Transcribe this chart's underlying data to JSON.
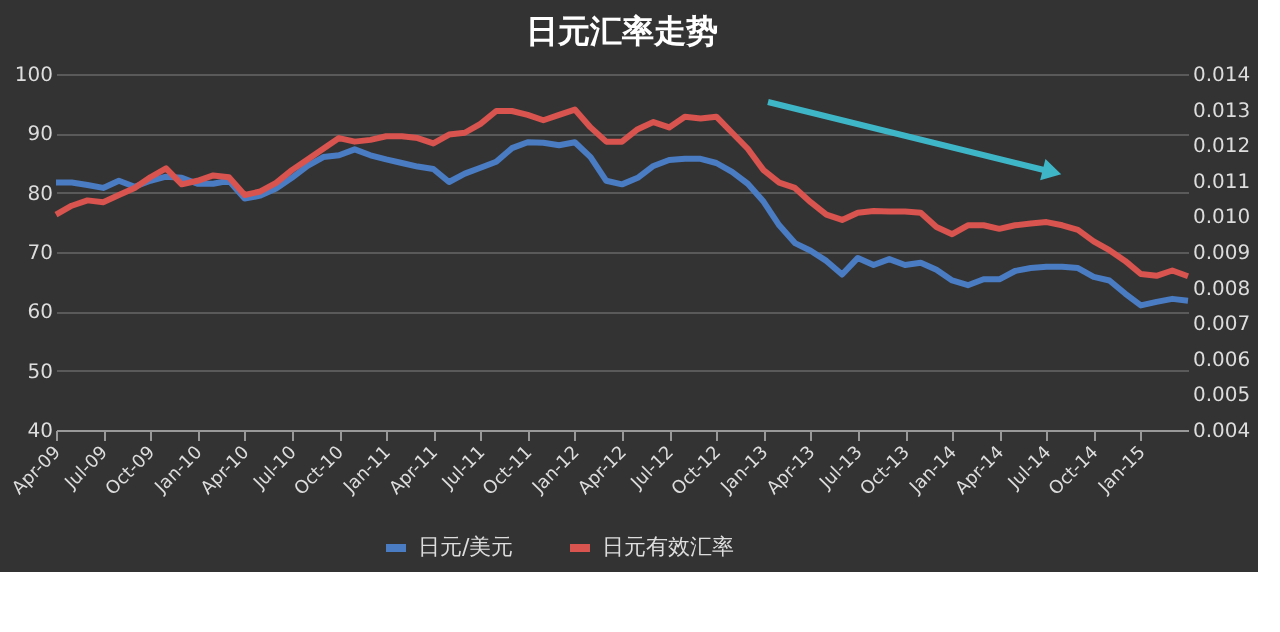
{
  "chart_data": {
    "type": "line",
    "title": "日元汇率走势",
    "categories": [
      "Apr-09",
      null,
      null,
      "Jul-09",
      null,
      null,
      "Oct-09",
      null,
      null,
      "Jan-10",
      null,
      null,
      "Apr-10",
      null,
      null,
      "Jul-10",
      null,
      null,
      "Oct-10",
      null,
      null,
      "Jan-11",
      null,
      null,
      "Apr-11",
      null,
      null,
      "Jul-11",
      null,
      null,
      "Oct-11",
      null,
      null,
      "Jan-12",
      null,
      null,
      "Apr-12",
      null,
      null,
      "Jul-12",
      null,
      null,
      "Oct-12",
      null,
      null,
      "Jan-13",
      null,
      null,
      "Apr-13",
      null,
      null,
      "Jul-13",
      null,
      null,
      "Oct-13",
      null,
      null,
      "Jan-14",
      null,
      null,
      "Apr-14",
      null,
      null,
      "Jul-14",
      null,
      null,
      "Oct-14",
      null,
      null,
      "Jan-15",
      null,
      null,
      null
    ],
    "series": [
      {
        "name": "日元/美元",
        "color": "#4a7cc4",
        "values": [
          81.7,
          81.7,
          81.3,
          80.8,
          82,
          81,
          82,
          82.7,
          82.5,
          81.5,
          81.5,
          82,
          79,
          79.5,
          80.7,
          82.5,
          84.5,
          86,
          86.3,
          87.3,
          86.3,
          85.6,
          85,
          84.4,
          84,
          81.8,
          83.2,
          84.2,
          85.2,
          87.5,
          88.5,
          88.4,
          88,
          88.5,
          86,
          82,
          81.4,
          82.5,
          84.5,
          85.5,
          85.7,
          85.7,
          85,
          83.5,
          81.5,
          78.5,
          74.5,
          71.5,
          70.2,
          68.5,
          66.2,
          69,
          67.8,
          68.8,
          67.8,
          68.2,
          67,
          65.2,
          64.4,
          65.4,
          65.4,
          66.8,
          67.3,
          67.5,
          67.5,
          67.3,
          65.8,
          65.2,
          63,
          61,
          61.6,
          62.1,
          61.8
        ]
      },
      {
        "name": "日元有效汇率",
        "color": "#d9534f",
        "axis": "y2",
        "values": [
          0.01005,
          0.0103,
          0.01045,
          0.0104,
          0.0106,
          0.0108,
          0.0111,
          0.01135,
          0.0109,
          0.011,
          0.01115,
          0.0111,
          0.0106,
          0.0107,
          0.01094,
          0.0113,
          0.0116,
          0.0119,
          0.0122,
          0.0121,
          0.01215,
          0.01225,
          0.01225,
          0.0122,
          0.01205,
          0.0123,
          0.01235,
          0.0126,
          0.01296,
          0.01296,
          0.01285,
          0.0127,
          0.01285,
          0.013,
          0.0125,
          0.0121,
          0.0121,
          0.01245,
          0.01265,
          0.0125,
          0.0128,
          0.01275,
          0.0128,
          0.01235,
          0.0119,
          0.0113,
          0.01095,
          0.0108,
          0.0104,
          0.01005,
          0.0099,
          0.0101,
          0.01015,
          0.01014,
          0.01014,
          0.0101,
          0.0097,
          0.0095,
          0.00975,
          0.00975,
          0.00965,
          0.00975,
          0.0098,
          0.00984,
          0.00975,
          0.00962,
          0.0093,
          0.00905,
          0.00875,
          0.00838,
          0.00833,
          0.00848,
          0.00832
        ]
      }
    ],
    "ylim": [
      40,
      100
    ],
    "yticks": [
      40,
      50,
      60,
      70,
      80,
      90,
      100
    ],
    "y2lim": [
      0.004,
      0.014
    ],
    "y2ticks": [
      {
        "value": 0.004,
        "label": "0.004"
      },
      {
        "value": 0.005,
        "label": "0.005"
      },
      {
        "value": 0.006,
        "label": "0.006"
      },
      {
        "value": 0.007,
        "label": "0.007"
      },
      {
        "value": 0.008,
        "label": "0.008"
      },
      {
        "value": 0.009,
        "label": "0.009"
      },
      {
        "value": 0.01,
        "label": "0.010"
      },
      {
        "value": 0.011,
        "label": "0.011"
      },
      {
        "value": 0.012,
        "label": "0.012"
      },
      {
        "value": 0.013,
        "label": "0.013"
      },
      {
        "value": 0.014,
        "label": "0.014"
      }
    ],
    "grid": "y",
    "legend": "bottom",
    "marker": "none",
    "line_style": "solid"
  }
}
